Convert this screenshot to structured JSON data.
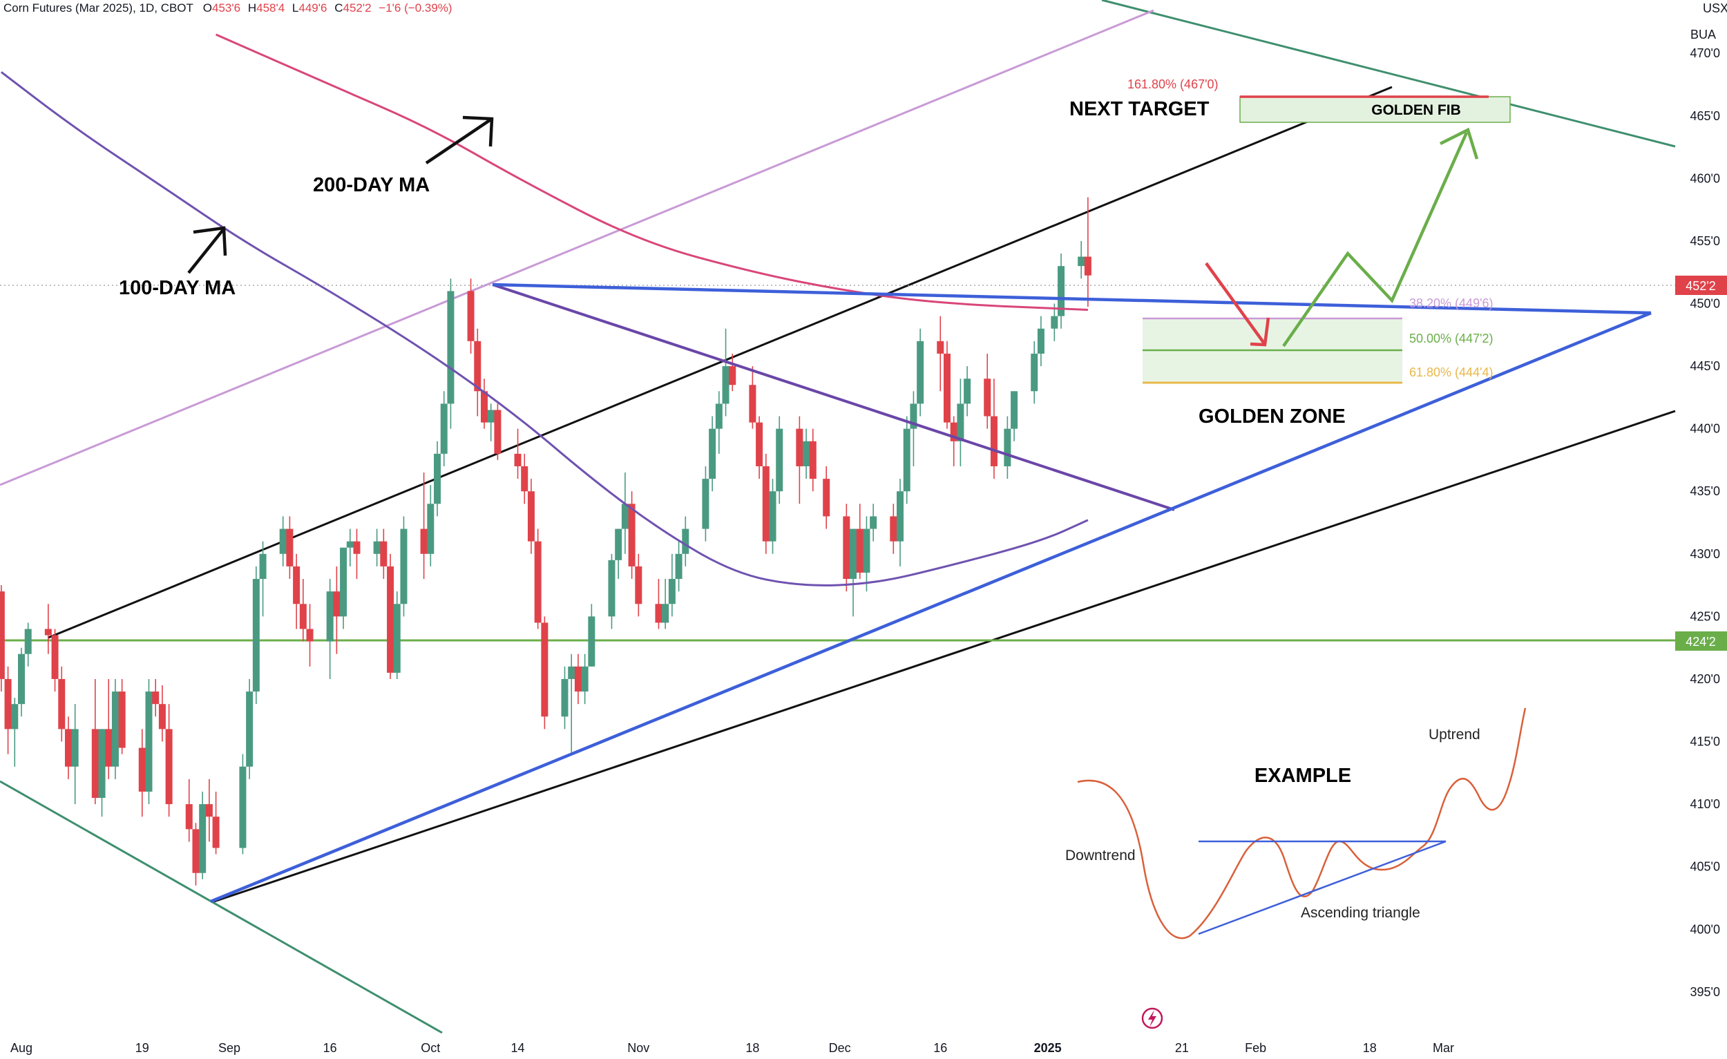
{
  "header": {
    "symbol": "Corn Futures (Mar 2025), 1D, CBOT",
    "open_label": "O",
    "open_value": "453'6",
    "high_label": "H",
    "high_value": "458'4",
    "low_label": "L",
    "low_value": "449'6",
    "close_label": "C",
    "close_value": "452'2",
    "change": "−1'6 (−0.39%)"
  },
  "scale": {
    "currency": "USX",
    "unit": "BUA"
  },
  "colors": {
    "up": "#4a9a82",
    "down": "#e0424a",
    "ma100": "#6f52b0",
    "ma200": "#d9467a",
    "trend_black": "#111111",
    "triangle_blue": "#3d5fd9",
    "channel_green": "#3e8f6e",
    "support_green": "#6aae4a",
    "light_purple": "#c99ad6",
    "wedge_purple": "#6a46a8",
    "fib_green": "#6aae4a",
    "fib_orange": "#e8b84a",
    "fib_red": "#e0424a"
  },
  "annotations": {
    "ma100": "100-DAY MA",
    "ma200": "200-DAY MA",
    "next_target": "NEXT TARGET",
    "golden_fib": "GOLDEN FIB",
    "golden_zone": "GOLDEN ZONE",
    "fib_1618": "161.80% (467'0)",
    "fib_382": "38.20% (449'6)",
    "fib_500": "50.00% (447'2)",
    "fib_618": "61.80% (444'4)"
  },
  "example": {
    "title": "EXAMPLE",
    "downtrend": "Downtrend",
    "uptrend": "Uptrend",
    "triangle": "Ascending triangle"
  },
  "price_labels": {
    "last": "452'2",
    "support": "424'2"
  },
  "chart_data": {
    "type": "candlestick",
    "title": "Corn Futures (Mar 2025), 1D, CBOT",
    "y_range": [
      393.5,
      471.5
    ],
    "y_ticks": [
      {
        "v": 470,
        "label": "470'0"
      },
      {
        "v": 465,
        "label": "465'0"
      },
      {
        "v": 460,
        "label": "460'0"
      },
      {
        "v": 455,
        "label": "455'0"
      },
      {
        "v": 450,
        "label": "450'0"
      },
      {
        "v": 445,
        "label": "445'0"
      },
      {
        "v": 440,
        "label": "440'0"
      },
      {
        "v": 435,
        "label": "435'0"
      },
      {
        "v": 430,
        "label": "430'0"
      },
      {
        "v": 425,
        "label": "425'0"
      },
      {
        "v": 420,
        "label": "420'0"
      },
      {
        "v": 415,
        "label": "415'0"
      },
      {
        "v": 410,
        "label": "410'0"
      },
      {
        "v": 405,
        "label": "405'0"
      },
      {
        "v": 400,
        "label": "400'0"
      },
      {
        "v": 395,
        "label": "395'0"
      }
    ],
    "x_ticks": [
      {
        "label": "Aug",
        "d": "2024-08-01",
        "bold": false
      },
      {
        "label": "19",
        "d": "2024-08-19",
        "bold": false
      },
      {
        "label": "Sep",
        "d": "2024-09-01",
        "bold": false
      },
      {
        "label": "16",
        "d": "2024-09-16",
        "bold": false
      },
      {
        "label": "Oct",
        "d": "2024-10-01",
        "bold": false
      },
      {
        "label": "14",
        "d": "2024-10-14",
        "bold": false
      },
      {
        "label": "Nov",
        "d": "2024-11-01",
        "bold": false
      },
      {
        "label": "18",
        "d": "2024-11-18",
        "bold": false
      },
      {
        "label": "Dec",
        "d": "2024-12-01",
        "bold": false
      },
      {
        "label": "16",
        "d": "2024-12-16",
        "bold": false
      },
      {
        "label": "2025",
        "d": "2025-01-01",
        "bold": true
      },
      {
        "label": "21",
        "d": "2025-01-21",
        "bold": false
      },
      {
        "label": "Feb",
        "d": "2025-02-01",
        "bold": false
      },
      {
        "label": "18",
        "d": "2025-02-18",
        "bold": false
      },
      {
        "label": "Mar",
        "d": "2025-03-01",
        "bold": false
      }
    ],
    "ohlc": [
      [
        "2024-07-29",
        427,
        427.5,
        419,
        420
      ],
      [
        "2024-07-30",
        420,
        421,
        414,
        416
      ],
      [
        "2024-07-31",
        416,
        418.5,
        413,
        418
      ],
      [
        "2024-08-01",
        418,
        422.5,
        417,
        422
      ],
      [
        "2024-08-02",
        422,
        424.5,
        421,
        424
      ],
      [
        "2024-08-05",
        424,
        426,
        422,
        423.5
      ],
      [
        "2024-08-06",
        423.5,
        424,
        419,
        420
      ],
      [
        "2024-08-07",
        420,
        421,
        415,
        416
      ],
      [
        "2024-08-08",
        416,
        417,
        412,
        413
      ],
      [
        "2024-08-09",
        413,
        418,
        410,
        416
      ],
      [
        "2024-08-12",
        416,
        420,
        410,
        410.5
      ],
      [
        "2024-08-13",
        410.5,
        416,
        409,
        416
      ],
      [
        "2024-08-14",
        416,
        420,
        412,
        413
      ],
      [
        "2024-08-15",
        413,
        420,
        412,
        419
      ],
      [
        "2024-08-16",
        419,
        420,
        414,
        414.5
      ],
      [
        "2024-08-19",
        414.5,
        416,
        409,
        411
      ],
      [
        "2024-08-20",
        411,
        420,
        410,
        419
      ],
      [
        "2024-08-21",
        419,
        420,
        417,
        418
      ],
      [
        "2024-08-22",
        418,
        419.5,
        415,
        416
      ],
      [
        "2024-08-23",
        416,
        418,
        409,
        410
      ],
      [
        "2024-08-26",
        410,
        412,
        407,
        408
      ],
      [
        "2024-08-27",
        408,
        408.5,
        403.5,
        404.5
      ],
      [
        "2024-08-28",
        404.5,
        411,
        404,
        410
      ],
      [
        "2024-08-29",
        410,
        412,
        407,
        409
      ],
      [
        "2024-08-30",
        409,
        411,
        406,
        406.5
      ],
      [
        "2024-09-03",
        406.5,
        414,
        406,
        413
      ],
      [
        "2024-09-04",
        413,
        420,
        412,
        419
      ],
      [
        "2024-09-05",
        419,
        429,
        418,
        428
      ],
      [
        "2024-09-06",
        428,
        431,
        425,
        430
      ],
      [
        "2024-09-09",
        430,
        433,
        429,
        432
      ],
      [
        "2024-09-10",
        432,
        433,
        428,
        429
      ],
      [
        "2024-09-11",
        429,
        430,
        424,
        426
      ],
      [
        "2024-09-12",
        426,
        428,
        423,
        424
      ],
      [
        "2024-09-13",
        424,
        426,
        421,
        423
      ],
      [
        "2024-09-16",
        423,
        428,
        420,
        427
      ],
      [
        "2024-09-17",
        427,
        429,
        422,
        425
      ],
      [
        "2024-09-18",
        425,
        430,
        424,
        430.5
      ],
      [
        "2024-09-19",
        430.5,
        432,
        429,
        431
      ],
      [
        "2024-09-20",
        431,
        432,
        428,
        430
      ],
      [
        "2024-09-23",
        430,
        432,
        429,
        431
      ],
      [
        "2024-09-24",
        431,
        432,
        428,
        429
      ],
      [
        "2024-09-25",
        429,
        430,
        420,
        420.5
      ],
      [
        "2024-09-26",
        420.5,
        427,
        420,
        426
      ],
      [
        "2024-09-27",
        426,
        433,
        425,
        432
      ],
      [
        "2024-09-30",
        432,
        436.5,
        428,
        430
      ],
      [
        "2024-10-01",
        430,
        435.5,
        429,
        434
      ],
      [
        "2024-10-02",
        434,
        439,
        433,
        438
      ],
      [
        "2024-10-03",
        438,
        443,
        437,
        442
      ],
      [
        "2024-10-04",
        442,
        452,
        440,
        451
      ],
      [
        "2024-10-07",
        451,
        452,
        446,
        447
      ],
      [
        "2024-10-08",
        447,
        448,
        441,
        443
      ],
      [
        "2024-10-09",
        443,
        444,
        440,
        440.5
      ],
      [
        "2024-10-10",
        440.5,
        442,
        439,
        441.5
      ],
      [
        "2024-10-11",
        441.5,
        442,
        437.5,
        438
      ],
      [
        "2024-10-14",
        438,
        440,
        436,
        437
      ],
      [
        "2024-10-15",
        437,
        438,
        434,
        435
      ],
      [
        "2024-10-16",
        435,
        436,
        430,
        431
      ],
      [
        "2024-10-17",
        431,
        432,
        424,
        424.5
      ],
      [
        "2024-10-18",
        424.5,
        425,
        416,
        417
      ],
      [
        "2024-10-21",
        417,
        421,
        416,
        420
      ],
      [
        "2024-10-22",
        420,
        422,
        414,
        421
      ],
      [
        "2024-10-23",
        421,
        422,
        418,
        419
      ],
      [
        "2024-10-24",
        419,
        422,
        418,
        421
      ],
      [
        "2024-10-25",
        421,
        426,
        421,
        425
      ],
      [
        "2024-10-28",
        425,
        430,
        424,
        429.5
      ],
      [
        "2024-10-29",
        429.5,
        432,
        428,
        432
      ],
      [
        "2024-10-30",
        432,
        436.5,
        430,
        434
      ],
      [
        "2024-10-31",
        434,
        435,
        428,
        429
      ],
      [
        "2024-11-01",
        429,
        430,
        425,
        426
      ],
      [
        "2024-11-04",
        426,
        428,
        424,
        424.5
      ],
      [
        "2024-11-05",
        424.5,
        428,
        424,
        426
      ],
      [
        "2024-11-06",
        426,
        430,
        425,
        428
      ],
      [
        "2024-11-07",
        428,
        431,
        427,
        430
      ],
      [
        "2024-11-08",
        430,
        433,
        429,
        432
      ],
      [
        "2024-11-11",
        432,
        437,
        431,
        436
      ],
      [
        "2024-11-12",
        436,
        441,
        435,
        440
      ],
      [
        "2024-11-13",
        440,
        443,
        438,
        442
      ],
      [
        "2024-11-14",
        442,
        448,
        441,
        445
      ],
      [
        "2024-11-15",
        445,
        446,
        443,
        443.5
      ],
      [
        "2024-11-18",
        443.5,
        445,
        440,
        440.5
      ],
      [
        "2024-11-19",
        440.5,
        441,
        436,
        437
      ],
      [
        "2024-11-20",
        437,
        438,
        430,
        431
      ],
      [
        "2024-11-21",
        431,
        436,
        430,
        435
      ],
      [
        "2024-11-22",
        435,
        441,
        434,
        440
      ],
      [
        "2024-11-25",
        440,
        441,
        434,
        437
      ],
      [
        "2024-11-26",
        437,
        440,
        436,
        439
      ],
      [
        "2024-11-27",
        439,
        440,
        435,
        436
      ],
      [
        "2024-11-29",
        436,
        437,
        432,
        433
      ],
      [
        "2024-12-02",
        433,
        434,
        427,
        428
      ],
      [
        "2024-12-03",
        428,
        432,
        425,
        432
      ],
      [
        "2024-12-04",
        432,
        434,
        428,
        428.5
      ],
      [
        "2024-12-05",
        428.5,
        433,
        427,
        432
      ],
      [
        "2024-12-06",
        432,
        434,
        431,
        433
      ],
      [
        "2024-12-09",
        433,
        434,
        430,
        431
      ],
      [
        "2024-12-10",
        431,
        436,
        429,
        435
      ],
      [
        "2024-12-11",
        435,
        441,
        434,
        440
      ],
      [
        "2024-12-12",
        440,
        443,
        437,
        442
      ],
      [
        "2024-12-13",
        442,
        448,
        441,
        447
      ],
      [
        "2024-12-16",
        447,
        449,
        443,
        446
      ],
      [
        "2024-12-17",
        446,
        447,
        440,
        440.5
      ],
      [
        "2024-12-18",
        440.5,
        441,
        437,
        439
      ],
      [
        "2024-12-19",
        439,
        444,
        437,
        442
      ],
      [
        "2024-12-20",
        442,
        445,
        441,
        444
      ],
      [
        "2024-12-23",
        444,
        446,
        440,
        441
      ],
      [
        "2024-12-24",
        441,
        444,
        436,
        437
      ],
      [
        "2024-12-26",
        437,
        441,
        436,
        440
      ],
      [
        "2024-12-27",
        440,
        443,
        439,
        443
      ],
      [
        "2024-12-30",
        443,
        447,
        442,
        446
      ],
      [
        "2024-12-31",
        446,
        449,
        445,
        448
      ],
      [
        "2025-01-02",
        448,
        450,
        447,
        449
      ],
      [
        "2025-01-03",
        449,
        454,
        448,
        453
      ],
      [
        "2025-01-06",
        453,
        455,
        452,
        453.75
      ],
      [
        "2025-01-07",
        453.75,
        458.5,
        449.75,
        452.25
      ]
    ],
    "series": [
      {
        "name": "100-DAY MA",
        "points": [
          [
            "2024-07-29",
            468.5
          ],
          [
            "2024-08-09",
            464
          ],
          [
            "2024-08-23",
            459
          ],
          [
            "2024-09-03",
            455
          ],
          [
            "2024-09-16",
            451
          ],
          [
            "2024-10-01",
            446
          ],
          [
            "2024-10-14",
            441
          ],
          [
            "2024-10-25",
            436
          ],
          [
            "2024-11-04",
            432
          ],
          [
            "2024-11-15",
            428.5
          ],
          [
            "2024-11-25",
            427.4
          ],
          [
            "2024-12-06",
            427.6
          ],
          [
            "2024-12-17",
            429
          ],
          [
            "2024-12-31",
            431
          ],
          [
            "2025-01-07",
            432.7
          ]
        ]
      },
      {
        "name": "200-DAY MA",
        "points": [
          [
            "2024-08-30",
            471.5
          ],
          [
            "2024-09-16",
            467.5
          ],
          [
            "2024-10-01",
            464
          ],
          [
            "2024-10-14",
            460
          ],
          [
            "2024-11-01",
            455
          ],
          [
            "2024-11-18",
            452.5
          ],
          [
            "2024-12-02",
            451
          ],
          [
            "2024-12-16",
            450
          ],
          [
            "2025-01-07",
            449.5
          ]
        ]
      }
    ]
  }
}
